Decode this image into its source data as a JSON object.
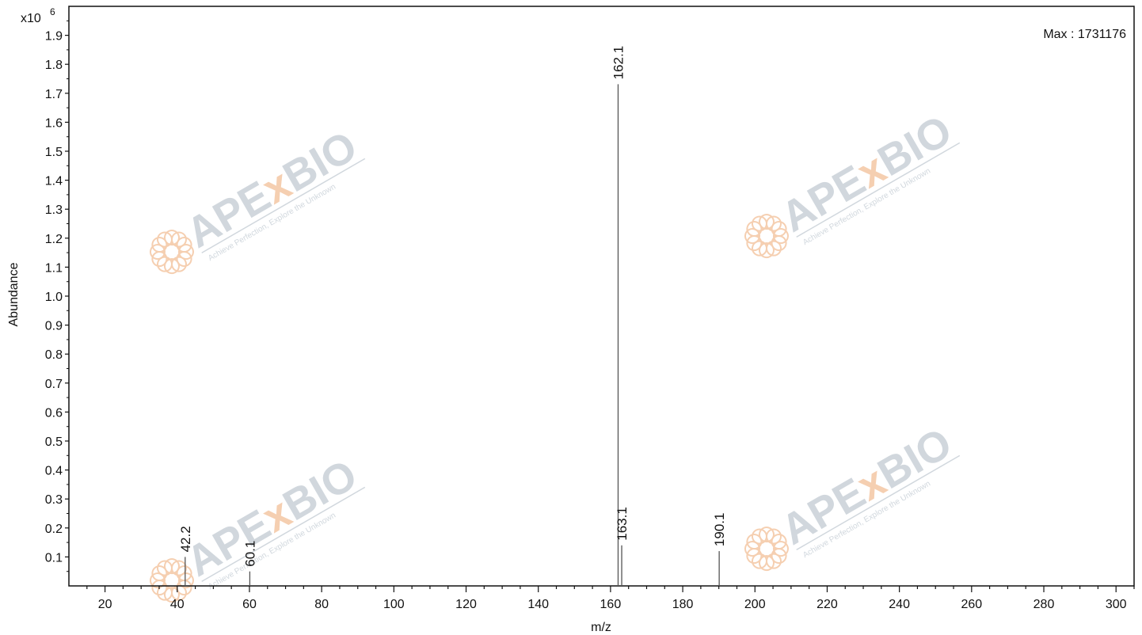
{
  "chart_data": {
    "type": "bar",
    "subtype": "mass-spectrum",
    "xlabel": "m/z",
    "ylabel": "Abundance",
    "y_multiplier_label": "x10",
    "y_multiplier_exponent": "6",
    "max_annotation": "Max : 1731176",
    "xlim": [
      10,
      305
    ],
    "ylim": [
      0,
      2.0
    ],
    "x_ticks": [
      20,
      40,
      60,
      80,
      100,
      120,
      140,
      160,
      180,
      200,
      220,
      240,
      260,
      280,
      300
    ],
    "y_ticks": [
      0.1,
      0.2,
      0.3,
      0.4,
      0.5,
      0.6,
      0.7,
      0.8,
      0.9,
      1.0,
      1.1,
      1.2,
      1.3,
      1.4,
      1.5,
      1.6,
      1.7,
      1.8,
      1.9
    ],
    "y_tick_labels": [
      "0.1",
      "0.2",
      "0.3",
      "0.4",
      "0.5",
      "0.6",
      "0.7",
      "0.8",
      "0.9",
      "1.0",
      "1.1",
      "1.2",
      "1.3",
      "1.4",
      "1.5",
      "1.6",
      "1.7",
      "1.8",
      "1.9"
    ],
    "peaks": [
      {
        "mz": 42.2,
        "abundance": 0.1,
        "label": "42.2"
      },
      {
        "mz": 60.1,
        "abundance": 0.05,
        "label": "60.1"
      },
      {
        "mz": 162.1,
        "abundance": 1.731176,
        "label": "162.1"
      },
      {
        "mz": 163.1,
        "abundance": 0.14,
        "label": "163.1"
      },
      {
        "mz": 190.1,
        "abundance": 0.12,
        "label": "190.1"
      }
    ],
    "grid": false,
    "colors": {
      "peak": "#555555",
      "axis": "#111111",
      "background": "#ffffff"
    }
  },
  "watermark": {
    "brand_prefix": "APE",
    "brand_x": "x",
    "brand_suffix": "BIO",
    "tagline": "Achieve Perfection, Explore the Unknown",
    "colors": {
      "text": "#c9d1d8",
      "accent": "#f4c7a4"
    }
  }
}
